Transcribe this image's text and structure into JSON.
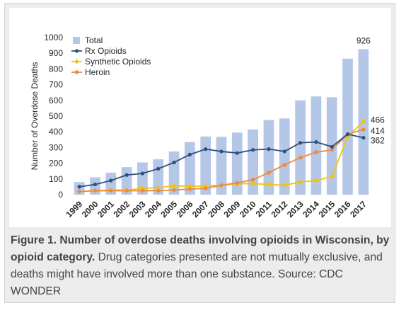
{
  "chart_data": {
    "type": "bar",
    "ylabel": "Number of Overdose Deaths",
    "ylim": [
      0,
      1000
    ],
    "yticks": [
      "0",
      "100",
      "200",
      "300",
      "400",
      "500",
      "600",
      "700",
      "800",
      "900",
      "1000"
    ],
    "categories": [
      "1999",
      "2000",
      "2001",
      "2002",
      "2003",
      "2004",
      "2005",
      "2006",
      "2007",
      "2008",
      "2009",
      "2010",
      "2011",
      "2012",
      "2013",
      "2014",
      "2015",
      "2016",
      "2017"
    ],
    "grid": false,
    "legend_position": "top-left",
    "series": [
      {
        "name": "Total",
        "kind": "bar",
        "color": "#b4c7e7",
        "values": [
          80,
          110,
          140,
          175,
          205,
          225,
          275,
          335,
          370,
          368,
          395,
          415,
          475,
          485,
          600,
          625,
          620,
          865,
          926
        ]
      },
      {
        "name": "Rx Opioids",
        "kind": "line",
        "color": "#2f4f7f",
        "values": [
          50,
          65,
          90,
          125,
          135,
          165,
          205,
          255,
          290,
          275,
          265,
          285,
          290,
          275,
          330,
          335,
          305,
          385,
          362
        ]
      },
      {
        "name": "Synthetic Opioids",
        "kind": "line",
        "color": "#f4c400",
        "values": [
          20,
          25,
          30,
          30,
          40,
          45,
          55,
          55,
          55,
          60,
          70,
          70,
          65,
          60,
          80,
          90,
          115,
          370,
          466
        ]
      },
      {
        "name": "Heroin",
        "kind": "line",
        "color": "#ef8a3c",
        "values": [
          20,
          25,
          25,
          25,
          25,
          25,
          30,
          35,
          40,
          60,
          75,
          95,
          140,
          190,
          235,
          270,
          285,
          385,
          414
        ]
      }
    ],
    "annotations": [
      {
        "label": "926",
        "series": "Total"
      },
      {
        "label": "466",
        "series": "Synthetic Opioids"
      },
      {
        "label": "414",
        "series": "Heroin"
      },
      {
        "label": "362",
        "series": "Rx Opioids"
      }
    ]
  },
  "caption": {
    "title": "Figure 1. Number of overdose deaths involving opioids in Wisconsin, by opioid category.",
    "body": "Drug categories presented are not mutually exclusive, and deaths might have involved more than one substance. Source: CDC WONDER"
  }
}
